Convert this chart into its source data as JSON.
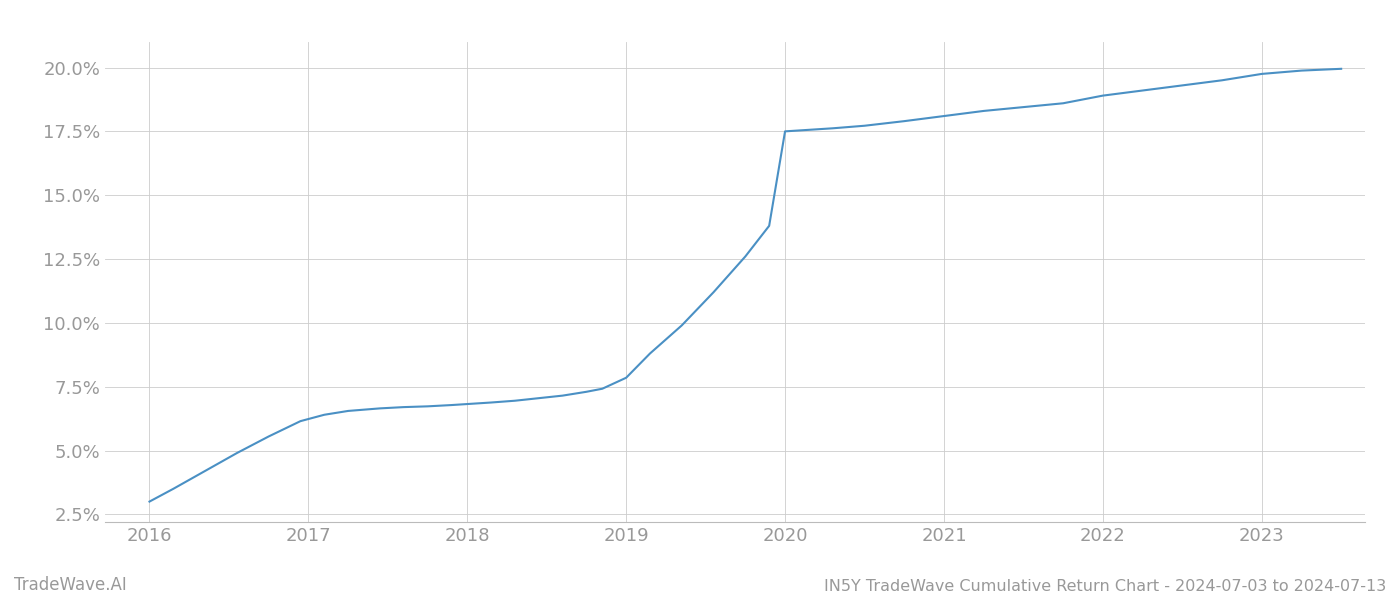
{
  "x": [
    2016.0,
    2016.15,
    2016.35,
    2016.55,
    2016.75,
    2016.95,
    2017.1,
    2017.25,
    2017.45,
    2017.6,
    2017.75,
    2017.9,
    2018.0,
    2018.15,
    2018.3,
    2018.45,
    2018.6,
    2018.75,
    2018.85,
    2019.0,
    2019.15,
    2019.35,
    2019.55,
    2019.75,
    2019.9,
    2020.0,
    2020.05,
    2020.15,
    2020.3,
    2020.5,
    2020.75,
    2021.0,
    2021.25,
    2021.5,
    2021.75,
    2022.0,
    2022.25,
    2022.5,
    2022.75,
    2023.0,
    2023.25,
    2023.5
  ],
  "y": [
    3.0,
    3.5,
    4.2,
    4.9,
    5.55,
    6.15,
    6.4,
    6.55,
    6.65,
    6.7,
    6.73,
    6.78,
    6.82,
    6.88,
    6.95,
    7.05,
    7.15,
    7.3,
    7.42,
    7.85,
    8.8,
    9.9,
    11.2,
    12.6,
    13.8,
    17.5,
    17.52,
    17.56,
    17.62,
    17.72,
    17.9,
    18.1,
    18.3,
    18.45,
    18.6,
    18.9,
    19.1,
    19.3,
    19.5,
    19.75,
    19.88,
    19.95
  ],
  "line_color": "#4a90c4",
  "line_width": 1.5,
  "background_color": "#ffffff",
  "grid_color": "#cccccc",
  "yticks": [
    2.5,
    5.0,
    7.5,
    10.0,
    12.5,
    15.0,
    17.5,
    20.0
  ],
  "xticks": [
    2016,
    2017,
    2018,
    2019,
    2020,
    2021,
    2022,
    2023
  ],
  "xlim": [
    2015.72,
    2023.65
  ],
  "ylim": [
    2.2,
    21.0
  ],
  "title": "IN5Y TradeWave Cumulative Return Chart - 2024-07-03 to 2024-07-13",
  "watermark": "TradeWave.AI",
  "tick_color": "#999999",
  "tick_fontsize": 13,
  "title_fontsize": 11.5,
  "watermark_fontsize": 12
}
